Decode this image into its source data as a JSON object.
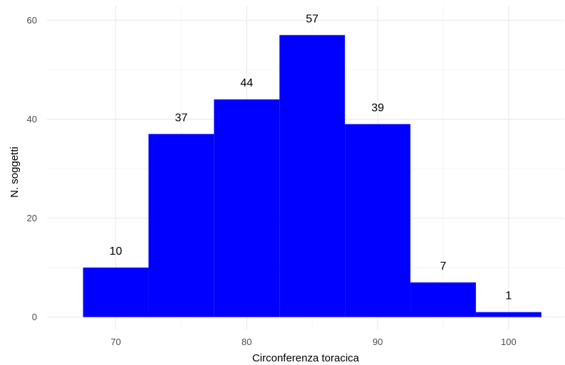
{
  "chart_data": {
    "type": "bar",
    "title": "",
    "xlabel": "Circonferenza toracica",
    "ylabel": "N. soggetti",
    "bin_width": 5,
    "bins": [
      {
        "center": 70,
        "value": 10,
        "label": "10"
      },
      {
        "center": 75,
        "value": 37,
        "label": "37"
      },
      {
        "center": 80,
        "value": 44,
        "label": "44"
      },
      {
        "center": 85,
        "value": 57,
        "label": "57"
      },
      {
        "center": 90,
        "value": 39,
        "label": "39"
      },
      {
        "center": 95,
        "value": 7,
        "label": "7"
      },
      {
        "center": 100,
        "value": 1,
        "label": "1"
      }
    ],
    "xlim": [
      64.75,
      104.25
    ],
    "ylim": [
      -2.5,
      60
    ],
    "x_ticks": [
      70,
      80,
      90,
      100
    ],
    "x_tick_labels": [
      "70",
      "80",
      "90",
      "100"
    ],
    "y_ticks": [
      0,
      20,
      40,
      60
    ],
    "y_tick_labels": [
      "0",
      "20",
      "40",
      "60"
    ],
    "grid": true,
    "legend": "none",
    "colors": {
      "bar": "#0000ff",
      "grid_major": "#ebebeb",
      "grid_minor": "#f4f4f4",
      "tick_text": "#4d4d4d",
      "label_text": "#000000"
    }
  }
}
